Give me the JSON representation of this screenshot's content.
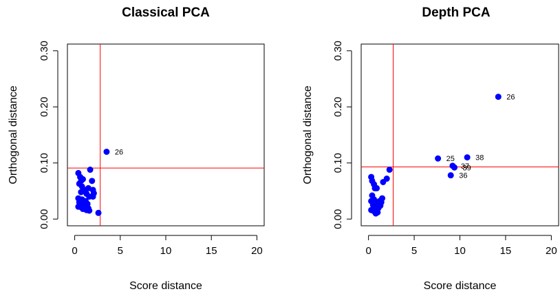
{
  "chart_data": [
    {
      "type": "scatter",
      "title": "Classical PCA",
      "xlabel": "Score distance",
      "ylabel": "Orthogonal distance",
      "xlim": [
        -0.8,
        20.8
      ],
      "ylim": [
        -0.012,
        0.312
      ],
      "xticks": [
        0,
        5,
        10,
        15,
        20
      ],
      "xtick_labels": [
        "0",
        "5",
        "10",
        "15",
        "20"
      ],
      "yticks": [
        0.0,
        0.1,
        0.2,
        0.3
      ],
      "ytick_labels": [
        "0.00",
        "0.10",
        "0.20",
        "0.30"
      ],
      "grid": false,
      "cutoff_x": 2.8,
      "cutoff_y": 0.091,
      "point_color": "#0000ff",
      "cutoff_color": "#ff0000",
      "points": [
        {
          "x": 0.4,
          "y": 0.082
        },
        {
          "x": 0.6,
          "y": 0.075
        },
        {
          "x": 0.7,
          "y": 0.068
        },
        {
          "x": 0.5,
          "y": 0.063
        },
        {
          "x": 0.9,
          "y": 0.071
        },
        {
          "x": 0.8,
          "y": 0.058
        },
        {
          "x": 1.1,
          "y": 0.052
        },
        {
          "x": 0.7,
          "y": 0.048
        },
        {
          "x": 1.3,
          "y": 0.045
        },
        {
          "x": 1.5,
          "y": 0.055
        },
        {
          "x": 2.0,
          "y": 0.052
        },
        {
          "x": 2.1,
          "y": 0.046
        },
        {
          "x": 1.6,
          "y": 0.04
        },
        {
          "x": 2.0,
          "y": 0.04
        },
        {
          "x": 0.4,
          "y": 0.037
        },
        {
          "x": 0.8,
          "y": 0.035
        },
        {
          "x": 1.2,
          "y": 0.032
        },
        {
          "x": 0.5,
          "y": 0.03
        },
        {
          "x": 0.9,
          "y": 0.028
        },
        {
          "x": 1.4,
          "y": 0.027
        },
        {
          "x": 0.6,
          "y": 0.025
        },
        {
          "x": 1.0,
          "y": 0.024
        },
        {
          "x": 0.4,
          "y": 0.022
        },
        {
          "x": 0.7,
          "y": 0.021
        },
        {
          "x": 1.1,
          "y": 0.02
        },
        {
          "x": 1.5,
          "y": 0.019
        },
        {
          "x": 0.9,
          "y": 0.018
        },
        {
          "x": 1.3,
          "y": 0.016
        },
        {
          "x": 1.6,
          "y": 0.015
        },
        {
          "x": 1.2,
          "y": 0.022
        },
        {
          "x": 1.7,
          "y": 0.088
        },
        {
          "x": 1.9,
          "y": 0.068
        },
        {
          "x": 2.6,
          "y": 0.011
        },
        {
          "x": 3.5,
          "y": 0.12,
          "label": "26"
        }
      ]
    },
    {
      "type": "scatter",
      "title": "Depth PCA",
      "xlabel": "Score distance",
      "ylabel": "Orthogonal distance",
      "xlim": [
        -0.8,
        20.8
      ],
      "ylim": [
        -0.012,
        0.312
      ],
      "xticks": [
        0,
        5,
        10,
        15,
        20
      ],
      "xtick_labels": [
        "0",
        "5",
        "10",
        "15",
        "20"
      ],
      "yticks": [
        0.0,
        0.1,
        0.2,
        0.3
      ],
      "ytick_labels": [
        "0.00",
        "0.10",
        "0.20",
        "0.30"
      ],
      "grid": false,
      "cutoff_x": 2.7,
      "cutoff_y": 0.093,
      "point_color": "#0000ff",
      "cutoff_color": "#ff0000",
      "points": [
        {
          "x": 0.3,
          "y": 0.075
        },
        {
          "x": 0.4,
          "y": 0.068
        },
        {
          "x": 0.6,
          "y": 0.062
        },
        {
          "x": 0.7,
          "y": 0.055
        },
        {
          "x": 0.9,
          "y": 0.055
        },
        {
          "x": 0.4,
          "y": 0.042
        },
        {
          "x": 0.6,
          "y": 0.035
        },
        {
          "x": 0.3,
          "y": 0.032
        },
        {
          "x": 0.8,
          "y": 0.03
        },
        {
          "x": 1.0,
          "y": 0.028
        },
        {
          "x": 1.2,
          "y": 0.032
        },
        {
          "x": 1.5,
          "y": 0.037
        },
        {
          "x": 1.4,
          "y": 0.03
        },
        {
          "x": 0.5,
          "y": 0.025
        },
        {
          "x": 0.9,
          "y": 0.022
        },
        {
          "x": 1.1,
          "y": 0.02
        },
        {
          "x": 0.7,
          "y": 0.018
        },
        {
          "x": 0.3,
          "y": 0.016
        },
        {
          "x": 0.6,
          "y": 0.014
        },
        {
          "x": 1.0,
          "y": 0.012
        },
        {
          "x": 0.8,
          "y": 0.01
        },
        {
          "x": 1.3,
          "y": 0.024
        },
        {
          "x": 1.6,
          "y": 0.066
        },
        {
          "x": 2.0,
          "y": 0.072
        },
        {
          "x": 2.3,
          "y": 0.088
        },
        {
          "x": 7.6,
          "y": 0.108,
          "label": "25"
        },
        {
          "x": 14.2,
          "y": 0.218,
          "label": "26"
        },
        {
          "x": 10.8,
          "y": 0.11,
          "label": "38"
        },
        {
          "x": 9.2,
          "y": 0.095,
          "label": "37"
        },
        {
          "x": 9.4,
          "y": 0.092,
          "label": "39"
        },
        {
          "x": 9.0,
          "y": 0.078,
          "label": "36"
        }
      ]
    }
  ]
}
